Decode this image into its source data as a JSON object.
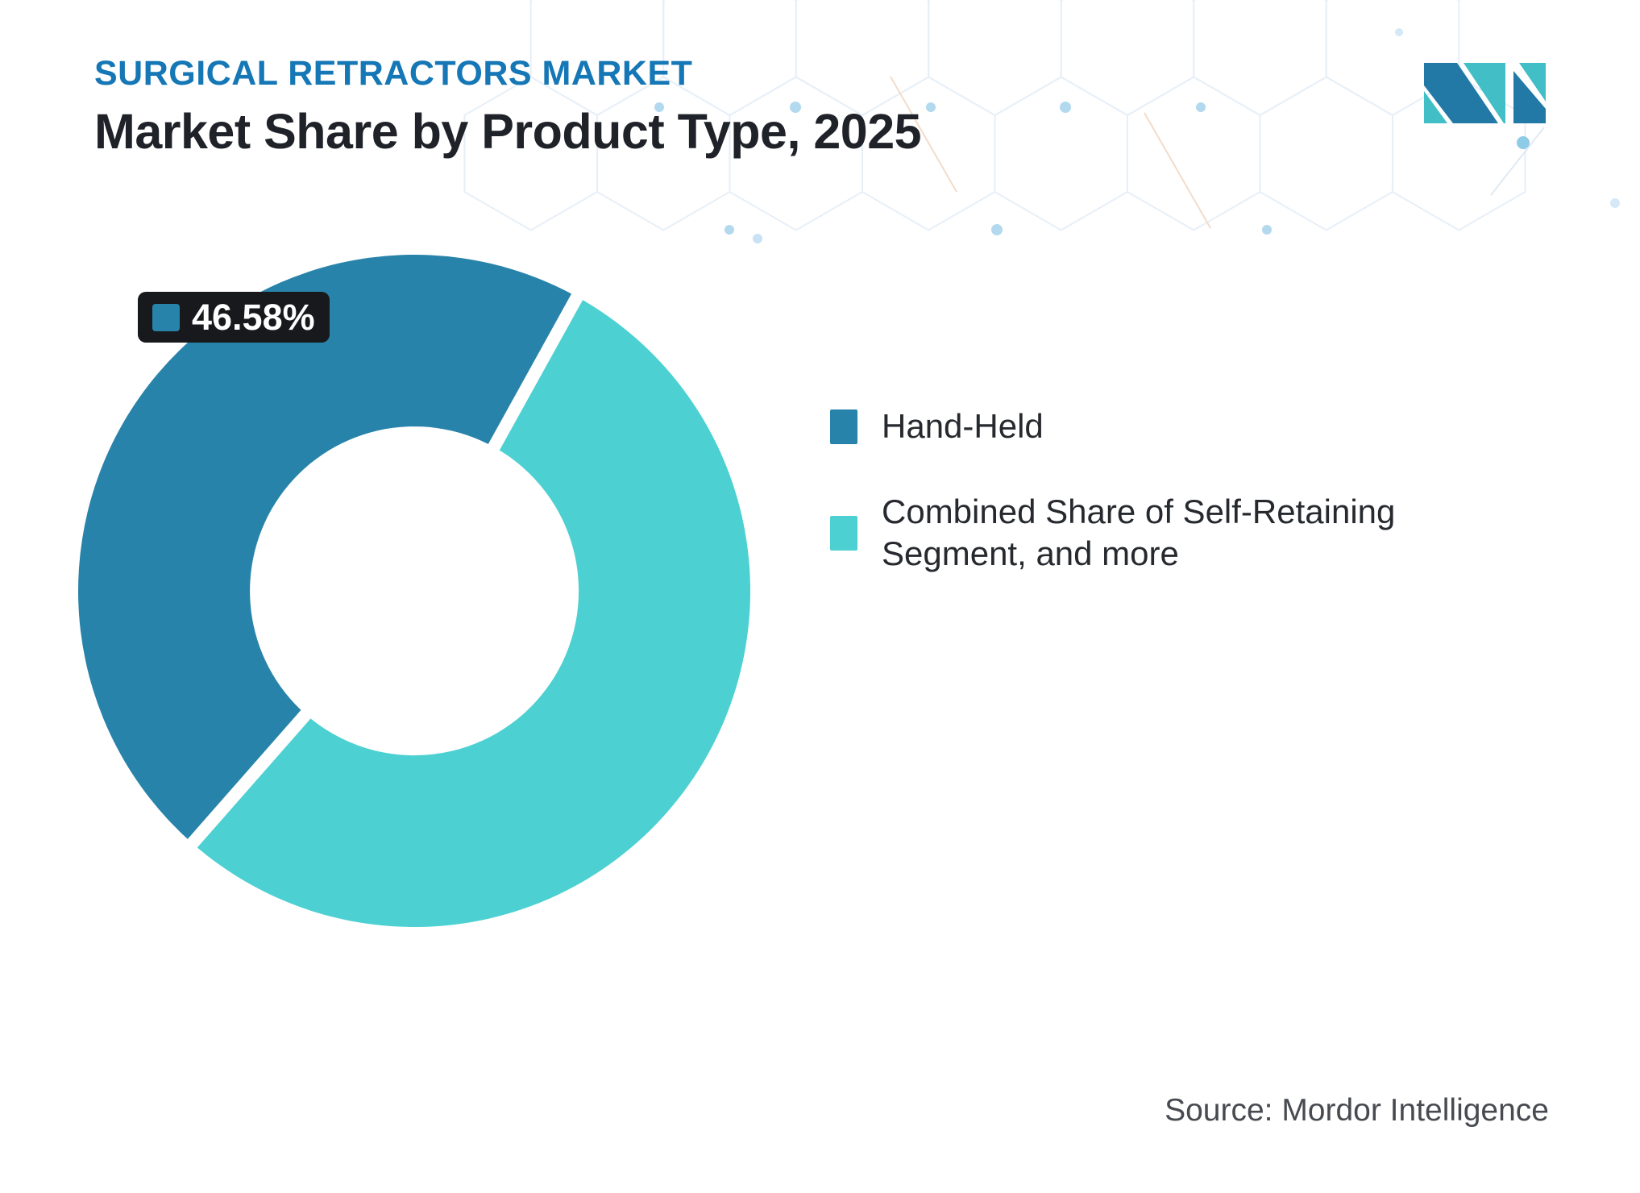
{
  "header": {
    "kicker": "SURGICAL RETRACTORS MARKET",
    "title": "Market Share by Product Type, 2025"
  },
  "badge": {
    "value": "46.58%"
  },
  "legend": {
    "items": [
      {
        "lines": [
          "Hand-Held"
        ],
        "color": "#2883AA"
      },
      {
        "lines": [
          "Combined Share of Self-Retaining",
          "Segment, and more"
        ],
        "color": "#4CD0D1"
      }
    ]
  },
  "source": {
    "text": "Source: Mordor Intelligence"
  },
  "logo": {
    "alt": "Mordor Intelligence logo",
    "blue": "#2279A6",
    "teal": "#41BEC6"
  },
  "colors": {
    "kicker_blue": "#1577B5",
    "heading_dark": "#1F2228",
    "badge_bg": "#17191D",
    "gap_white": "#FFFFFF"
  },
  "chart_data": {
    "type": "pie",
    "donut": true,
    "title": "Market Share by Product Type, 2025",
    "legend_position": "right",
    "start_angle_deg": 61,
    "direction": "ccw",
    "outer_radius_px": 417,
    "inner_radius_px": 204,
    "segments": [
      {
        "label": "Hand-Held",
        "value": 46.58,
        "color": "#2883AA",
        "data_label": "46.58%"
      },
      {
        "label": "Combined Share of Self-Retaining Segment, and more",
        "value": 53.42,
        "color": "#4CD0D1",
        "data_label": ""
      }
    ]
  }
}
